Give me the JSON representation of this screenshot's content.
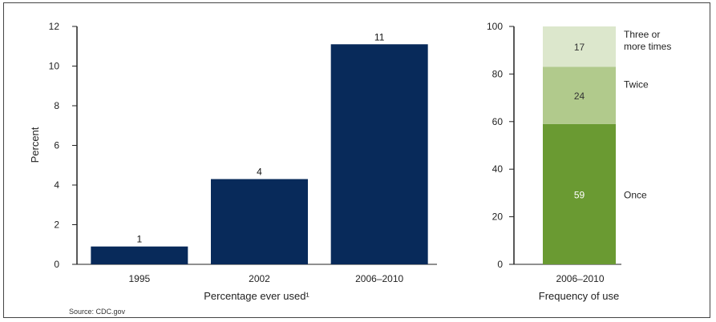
{
  "source_text": "Source: CDC.gov",
  "chart_data": [
    {
      "type": "bar",
      "categories": [
        "1995",
        "2002",
        "2006–2010"
      ],
      "values": [
        1,
        4,
        11
      ],
      "value_labels": [
        "1",
        "4",
        "11"
      ],
      "bar_heights": [
        0.9,
        4.3,
        11.1
      ],
      "xlabel": "Percentage ever used¹",
      "ylabel": "Percent",
      "ylim": [
        0,
        12
      ],
      "yticks": [
        "0",
        "2",
        "4",
        "6",
        "8",
        "10",
        "12"
      ],
      "color": "#082a5a",
      "grid": false
    },
    {
      "type": "bar",
      "stacked": true,
      "categories": [
        "2006–2010"
      ],
      "series": [
        {
          "name": "Once",
          "values": [
            59
          ],
          "label": "59",
          "color": "#6a9a32"
        },
        {
          "name": "Twice",
          "values": [
            24
          ],
          "label": "24",
          "color": "#b1ca8c"
        },
        {
          "name": "Three or more times",
          "name_lines": [
            "Three or",
            "more times"
          ],
          "values": [
            17
          ],
          "label": "17",
          "color": "#dce7cc"
        }
      ],
      "xlabel": "Frequency of use",
      "ylim": [
        0,
        100
      ],
      "yticks": [
        "0",
        "20",
        "40",
        "60",
        "80",
        "100"
      ],
      "grid": false,
      "legend_placement": "right"
    }
  ]
}
